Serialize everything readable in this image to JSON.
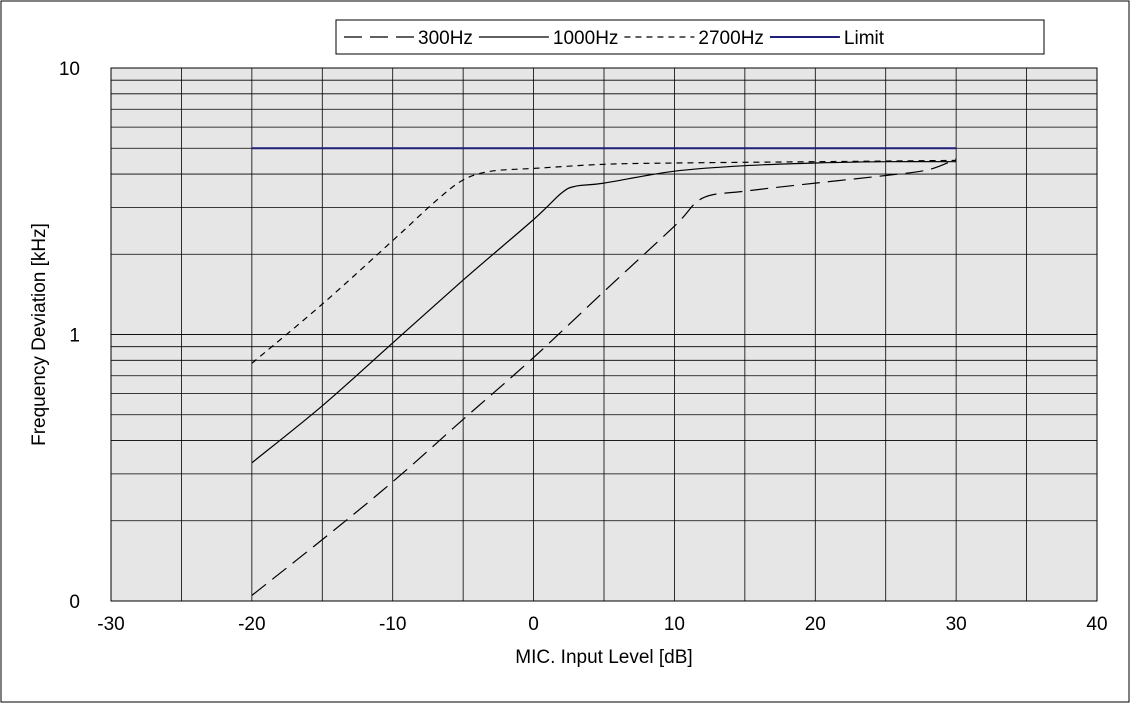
{
  "chart_data": {
    "type": "line",
    "title": "",
    "xlabel": "MIC. Input Level [dB]",
    "ylabel": "Frequency Deviation [kHz]",
    "x_axis": {
      "range": [
        -30,
        40
      ],
      "ticks": [
        -30,
        -20,
        -10,
        0,
        10,
        20,
        30,
        40
      ],
      "tick_labels": [
        "-30",
        "-20",
        "-10",
        "0",
        "10",
        "20",
        "30",
        "40"
      ],
      "minor_grid_step": 5
    },
    "y_axis": {
      "scale": "log",
      "range_decades": 2,
      "tick_labels": [
        "0",
        "1",
        "10"
      ],
      "minor_grid": true
    },
    "grid": true,
    "legend_position": "top-right",
    "series": [
      {
        "name": "300Hz",
        "style": "long-dash",
        "color": "#000000",
        "x": [
          -20,
          -15,
          -10,
          -5,
          0,
          5,
          10,
          12,
          15,
          20,
          25,
          28,
          30
        ],
        "y": [
          0.105,
          0.17,
          0.28,
          0.48,
          0.82,
          1.45,
          2.55,
          3.25,
          3.45,
          3.7,
          3.95,
          4.15,
          4.55
        ]
      },
      {
        "name": "1000Hz",
        "style": "solid",
        "color": "#000000",
        "x": [
          -20,
          -15,
          -10,
          -5,
          0,
          2,
          3,
          5,
          10,
          15,
          20,
          25,
          30
        ],
        "y": [
          0.33,
          0.54,
          0.93,
          1.6,
          2.7,
          3.4,
          3.6,
          3.7,
          4.1,
          4.3,
          4.4,
          4.45,
          4.45
        ]
      },
      {
        "name": "2700Hz",
        "style": "short-dash",
        "color": "#000000",
        "x": [
          -20,
          -15,
          -10,
          -7,
          -5,
          -3,
          0,
          5,
          10,
          20,
          30
        ],
        "y": [
          0.78,
          1.3,
          2.25,
          3.15,
          3.8,
          4.1,
          4.2,
          4.35,
          4.4,
          4.45,
          4.5
        ]
      },
      {
        "name": "Limit",
        "style": "solid",
        "color": "#1f1f7a",
        "x": [
          -20,
          30
        ],
        "y": [
          5.0,
          5.0
        ]
      }
    ],
    "colors": {
      "plot_background": "#e6e6e6",
      "grid": "#000000",
      "limit_line": "#1f1f7a"
    }
  }
}
